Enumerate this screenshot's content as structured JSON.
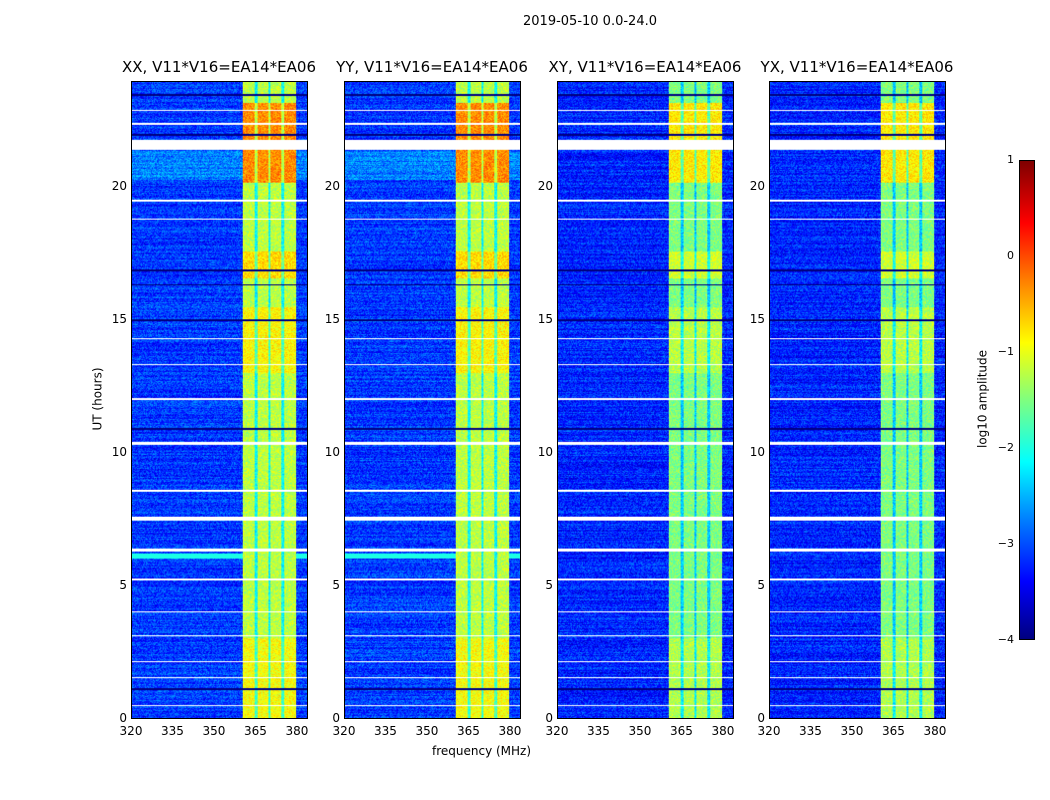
{
  "chart_data": {
    "type": "heatmap",
    "title": "2019-05-10 0.0-24.0",
    "xlabel": "frequency (MHz)",
    "ylabel": "UT (hours)",
    "xlim": [
      320,
      384
    ],
    "ylim": [
      0,
      24
    ],
    "xticks": [
      "320",
      "335",
      "350",
      "365",
      "380"
    ],
    "xtick_values": [
      320,
      335,
      350,
      365,
      380
    ],
    "yticks": [
      "0",
      "5",
      "10",
      "15",
      "20"
    ],
    "ytick_values": [
      0,
      5,
      10,
      15,
      20
    ],
    "panels": [
      {
        "title": "XX, V11*V16=EA14*EA06",
        "pol": "XX",
        "band_level": -1.2,
        "background": -3.1
      },
      {
        "title": "YY, V11*V16=EA14*EA06",
        "pol": "YY",
        "band_level": -1.2,
        "background": -3.1
      },
      {
        "title": "XY, V11*V16=EA14*EA06",
        "pol": "XY",
        "band_level": -1.5,
        "background": -3.2
      },
      {
        "title": "YX, V11*V16=EA14*EA06",
        "pol": "YX",
        "band_level": -1.5,
        "background": -3.2
      }
    ],
    "rfi_band_mhz": [
      360.5,
      380
    ],
    "band_gaps_mhz": [
      365.3,
      370.2,
      375.1
    ],
    "bright_hours": [
      [
        20.2,
        23.2
      ],
      [
        16.6,
        17.6
      ],
      [
        13,
        15.5
      ],
      [
        0,
        3
      ]
    ],
    "flagged_hours": [
      [
        21.45,
        21.8
      ],
      [
        10.3,
        10.42
      ],
      [
        7.45,
        7.6
      ],
      [
        6.3,
        6.38
      ],
      [
        8.55,
        8.62
      ],
      [
        12.0,
        12.06
      ],
      [
        5.2,
        5.25
      ],
      [
        4.0,
        4.04
      ],
      [
        3.1,
        3.14
      ],
      [
        2.1,
        2.14
      ],
      [
        18.8,
        18.85
      ],
      [
        19.5,
        19.55
      ],
      [
        22.9,
        22.95
      ],
      [
        22.4,
        22.45
      ],
      [
        13.3,
        13.34
      ],
      [
        14.3,
        14.34
      ],
      [
        0.45,
        0.5
      ],
      [
        1.5,
        1.54
      ]
    ],
    "colorbar": {
      "label": "log10 amplitude",
      "clim": [
        -4,
        1
      ],
      "ticks": [
        "1",
        "0",
        "−1",
        "−2",
        "−3",
        "−4"
      ],
      "tick_values": [
        1,
        0,
        -1,
        -2,
        -3,
        -4
      ],
      "colormap": "jet"
    }
  }
}
